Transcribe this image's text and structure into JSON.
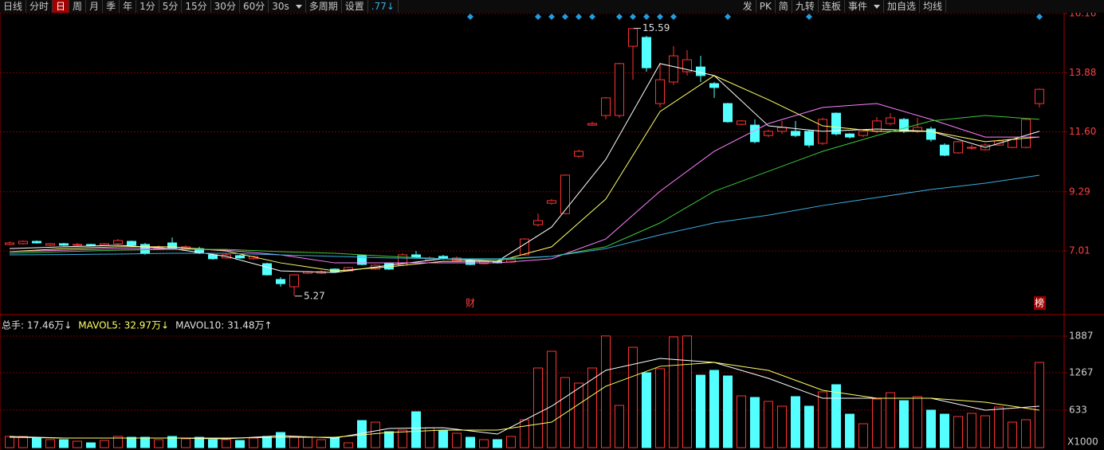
{
  "toolbar": {
    "left": [
      "日线",
      "分时",
      "日",
      "周",
      "月",
      "季",
      "年",
      "1分",
      "5分",
      "15分",
      "30分",
      "60分",
      "30s",
      "多周期",
      "设置",
      ".77↓"
    ],
    "right": [
      "发",
      "PK",
      "简",
      "九转",
      "连板",
      "事件",
      "加自选",
      "均线"
    ]
  },
  "events": [
    "财",
    "榜"
  ],
  "chart_data": [
    {
      "type": "candlestick",
      "up_color": "#ff3232",
      "down_color": "#54ffff",
      "open": [
        7.26,
        7.29,
        7.38,
        7.23,
        7.29,
        7.23,
        7.26,
        7.23,
        7.29,
        7.38,
        7.26,
        7.07,
        7.32,
        7.1,
        7.1,
        6.86,
        6.74,
        6.83,
        6.71,
        6.52,
        5.91,
        5.63,
        6.15,
        6.15,
        6.31,
        6.24,
        6.83,
        6.31,
        6.52,
        6.46,
        6.86,
        6.67,
        6.8,
        6.64,
        6.64,
        6.52,
        6.61,
        6.58,
        6.86,
        8.02,
        8.85,
        8.45,
        10.66,
        11.86,
        12.23,
        12.23,
        14.9,
        15.24,
        12.69,
        13.52,
        13.92,
        14.1,
        13.46,
        12.69,
        11.89,
        11.86,
        11.46,
        11.62,
        11.62,
        11.62,
        11.16,
        12.32,
        11.52,
        11.46,
        11.62,
        11.92,
        12.08,
        11.62,
        11.71,
        11.09,
        10.79,
        10.97,
        10.91,
        11.09,
        11.0,
        11.0,
        12.69
      ],
      "high": [
        7.38,
        7.41,
        7.41,
        7.32,
        7.32,
        7.32,
        7.29,
        7.32,
        7.47,
        7.41,
        7.32,
        7.23,
        7.53,
        7.23,
        7.17,
        6.92,
        6.92,
        6.86,
        6.83,
        6.55,
        6.0,
        6.12,
        6.24,
        6.27,
        6.34,
        6.4,
        6.86,
        6.49,
        6.55,
        6.92,
        7.01,
        6.8,
        6.86,
        6.8,
        6.67,
        6.64,
        6.64,
        6.71,
        7.5,
        8.45,
        9.01,
        9.96,
        10.91,
        11.99,
        12.94,
        14.26,
        15.59,
        15.3,
        14.26,
        14.9,
        14.75,
        14.53,
        13.52,
        12.72,
        12.05,
        12.08,
        11.68,
        12.02,
        12.02,
        11.68,
        12.14,
        12.35,
        11.55,
        11.68,
        12.17,
        12.32,
        12.14,
        12.14,
        11.8,
        11.16,
        11.25,
        11.09,
        11.16,
        11.31,
        11.34,
        12.11,
        13.27
      ],
      "low": [
        7.23,
        7.26,
        7.29,
        7.2,
        7.2,
        7.2,
        7.2,
        7.2,
        7.26,
        7.2,
        6.86,
        7.04,
        7.07,
        7.07,
        6.89,
        6.67,
        6.71,
        6.71,
        6.67,
        6.06,
        5.63,
        5.27,
        6.12,
        6.12,
        6.18,
        6.21,
        6.46,
        6.28,
        6.28,
        6.43,
        6.74,
        6.64,
        6.67,
        6.61,
        6.46,
        6.49,
        6.52,
        6.55,
        6.83,
        7.95,
        8.79,
        8.42,
        10.6,
        11.83,
        12.08,
        12.14,
        13.61,
        13.92,
        12.54,
        13.4,
        13.77,
        13.52,
        12.91,
        11.95,
        11.86,
        11.16,
        11.4,
        11.52,
        11.4,
        11.0,
        11.09,
        11.46,
        11.34,
        11.4,
        11.55,
        11.86,
        11.55,
        11.55,
        11.22,
        10.66,
        10.76,
        10.91,
        10.88,
        11.06,
        10.97,
        10.97,
        12.54
      ],
      "close": [
        7.32,
        7.38,
        7.32,
        7.29,
        7.23,
        7.26,
        7.23,
        7.29,
        7.41,
        7.23,
        6.92,
        7.17,
        7.1,
        7.17,
        6.92,
        6.71,
        6.86,
        6.74,
        6.8,
        6.09,
        5.75,
        6.09,
        6.21,
        6.21,
        6.21,
        6.37,
        6.49,
        6.46,
        6.31,
        6.86,
        6.77,
        6.74,
        6.71,
        6.74,
        6.49,
        6.61,
        6.55,
        6.67,
        7.47,
        8.18,
        8.95,
        9.93,
        10.85,
        11.92,
        12.91,
        14.23,
        15.58,
        14.07,
        13.61,
        14.53,
        14.38,
        13.77,
        13.31,
        11.99,
        12.02,
        11.22,
        11.62,
        11.77,
        11.46,
        11.09,
        12.08,
        11.52,
        11.4,
        11.62,
        12.02,
        12.14,
        11.62,
        11.77,
        11.31,
        10.7,
        11.22,
        11.0,
        11.09,
        11.25,
        11.31,
        12.08,
        13.24
      ],
      "series": [
        {
          "color": "#ffffff",
          "x": [
            0,
            4,
            8,
            12,
            16,
            20,
            24,
            28,
            32,
            36,
            40,
            44,
            48,
            52,
            56,
            60,
            64,
            68,
            72,
            76
          ],
          "values": [
            7.1,
            7.17,
            7.23,
            7.1,
            6.8,
            6.24,
            6.18,
            6.46,
            6.71,
            6.61,
            7.93,
            10.54,
            14.23,
            13.77,
            11.83,
            11.62,
            11.71,
            11.62,
            11.0,
            11.62
          ]
        },
        {
          "color": "#ffff66",
          "x": [
            0,
            4,
            8,
            12,
            16,
            20,
            24,
            28,
            32,
            36,
            40,
            44,
            48,
            52,
            56,
            60,
            64,
            68,
            72,
            76
          ],
          "values": [
            6.98,
            7.1,
            7.17,
            7.17,
            7.01,
            6.55,
            6.24,
            6.4,
            6.61,
            6.61,
            7.17,
            9.01,
            12.38,
            13.77,
            12.84,
            11.83,
            11.62,
            11.62,
            11.22,
            11.4
          ]
        },
        {
          "color": "#ff80ff",
          "x": [
            0,
            4,
            8,
            12,
            16,
            20,
            24,
            28,
            32,
            36,
            40,
            44,
            48,
            52,
            56,
            60,
            64,
            68,
            72,
            76
          ],
          "values": [
            6.98,
            7.04,
            7.1,
            7.1,
            7.04,
            6.86,
            6.55,
            6.55,
            6.55,
            6.55,
            6.71,
            7.47,
            9.31,
            10.85,
            11.92,
            12.54,
            12.69,
            12.08,
            11.4,
            11.4
          ]
        },
        {
          "color": "#3cc83c",
          "x": [
            0,
            4,
            8,
            12,
            16,
            20,
            24,
            28,
            32,
            36,
            40,
            44,
            48,
            52,
            56,
            60,
            64,
            68,
            72,
            76
          ],
          "values": [
            6.92,
            6.98,
            7.04,
            7.07,
            7.07,
            6.98,
            6.92,
            6.8,
            6.71,
            6.67,
            6.8,
            7.17,
            8.09,
            9.31,
            10.08,
            10.85,
            11.46,
            12.02,
            12.23,
            12.08
          ]
        },
        {
          "color": "#3aaee0",
          "x": [
            0,
            4,
            8,
            12,
            16,
            20,
            24,
            28,
            32,
            36,
            40,
            44,
            48,
            52,
            56,
            60,
            64,
            68,
            72,
            76
          ],
          "values": [
            6.86,
            6.87,
            6.89,
            6.92,
            6.92,
            6.86,
            6.8,
            6.74,
            6.71,
            6.71,
            6.8,
            7.1,
            7.63,
            8.09,
            8.39,
            8.76,
            9.07,
            9.38,
            9.62,
            9.93
          ]
        }
      ],
      "annotations": [
        15.59,
        5.27
      ],
      "ylim": [
        4.71,
        16.16
      ],
      "yticks": [
        7.01,
        9.29,
        {
          "value": 11.6,
          "label": "11.60"
        },
        13.88,
        16.16
      ],
      "grid": true
    },
    {
      "type": "bar",
      "header": [
        "总手: 17.46万↓",
        "MAVOL5: 32.97万↓",
        "MAVOL10: 31.48万↑"
      ],
      "values": [
        189,
        189,
        162,
        135,
        135,
        108,
        81,
        121,
        189,
        175,
        175,
        135,
        189,
        148,
        175,
        135,
        135,
        121,
        162,
        189,
        256,
        189,
        175,
        135,
        162,
        81,
        458,
        431,
        270,
        297,
        607,
        337,
        283,
        243,
        175,
        135,
        135,
        189,
        472,
        1348,
        1631,
        1186,
        1092,
        1348,
        1890,
        714,
        1698,
        1267,
        1335,
        1874,
        1890,
        1226,
        1308,
        1213,
        876,
        849,
        782,
        701,
        863,
        701,
        944,
        1065,
        566,
        404,
        822,
        930,
        795,
        863,
        634,
        566,
        526,
        580,
        539,
        687,
        431,
        472,
        1442
      ],
      "series": [
        {
          "color": "#ffffff",
          "x": [
            0,
            4,
            8,
            12,
            16,
            20,
            24,
            28,
            32,
            36,
            40,
            44,
            48,
            52,
            56,
            60,
            64,
            68,
            72,
            76
          ],
          "values": [
            189,
            162,
            162,
            162,
            148,
            202,
            162,
            324,
            337,
            229,
            701,
            1308,
            1510,
            1442,
            1173,
            836,
            836,
            836,
            634,
            701
          ]
        },
        {
          "color": "#ffff66",
          "x": [
            0,
            4,
            8,
            12,
            16,
            20,
            24,
            28,
            32,
            36,
            40,
            44,
            48,
            52,
            56,
            60,
            64,
            68,
            72,
            76
          ],
          "values": [
            175,
            162,
            162,
            162,
            162,
            175,
            175,
            256,
            297,
            297,
            431,
            1038,
            1376,
            1442,
            1308,
            971,
            836,
            836,
            768,
            634
          ]
        }
      ],
      "unit_label": "X1000",
      "ylim": [
        0,
        2157
      ],
      "yticks": [
        633,
        1267,
        1887
      ],
      "grid": true
    }
  ]
}
